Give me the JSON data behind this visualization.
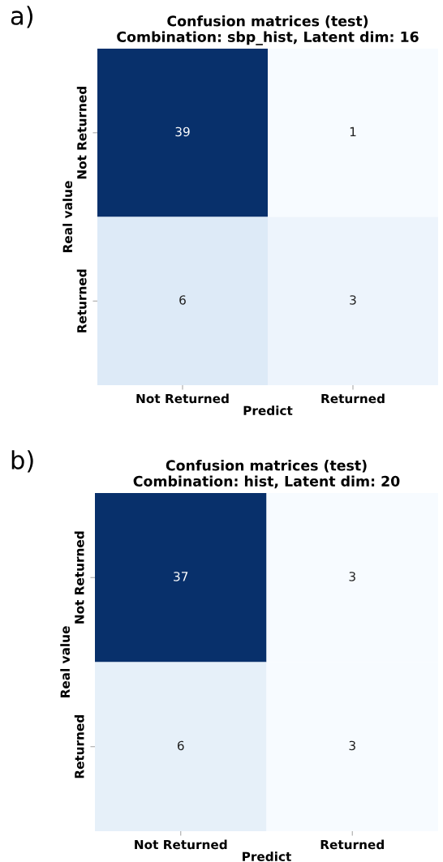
{
  "chart_data": [
    {
      "type": "heatmap",
      "title": "Confusion matrices (test)",
      "subtitle": "Combination: sbp_hist, Latent dim: 16",
      "xlabel": "Predict",
      "ylabel": "Real value",
      "annotations": [
        "a)"
      ],
      "categories": [
        "Not Returned",
        "Returned"
      ],
      "y_categories": [
        "Not Returned",
        "Returned"
      ],
      "cells": [
        [
          39,
          1
        ],
        [
          6,
          3
        ]
      ],
      "data_labels": true
    },
    {
      "type": "heatmap",
      "title": "Confusion matrices (test)",
      "subtitle": "Combination: hist, Latent dim: 20",
      "xlabel": "Predict",
      "ylabel": "Real value",
      "annotations": [
        "b)"
      ],
      "categories": [
        "Not Returned",
        "Returned"
      ],
      "y_categories": [
        "Not Returned",
        "Returned"
      ],
      "cells": [
        [
          37,
          3
        ],
        [
          6,
          3
        ]
      ],
      "data_labels": true
    }
  ]
}
